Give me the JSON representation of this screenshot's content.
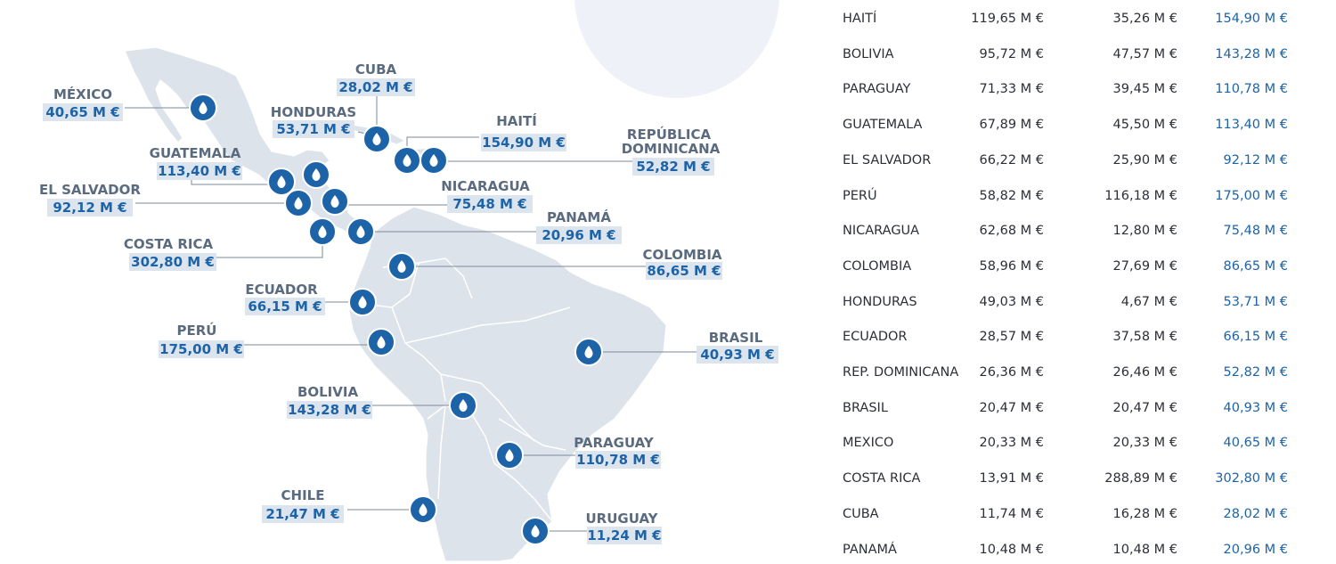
{
  "map": {
    "labels": [
      {
        "id": "mexico",
        "name": "MÉXICO",
        "value": "40,65 M €"
      },
      {
        "id": "cuba",
        "name": "CUBA",
        "value": "28,02 M €"
      },
      {
        "id": "honduras",
        "name": "HONDURAS",
        "value": "53,71 M €"
      },
      {
        "id": "haiti",
        "name": "HAITÍ",
        "value": "154,90 M €"
      },
      {
        "id": "rep_dominicana",
        "name": "REPÚBLICA",
        "name2": "DOMINICANA",
        "value": "52,82 M €"
      },
      {
        "id": "guatemala",
        "name": "GUATEMALA",
        "value": "113,40 M €"
      },
      {
        "id": "el_salvador",
        "name": "EL SALVADOR",
        "value": "92,12 M €"
      },
      {
        "id": "nicaragua",
        "name": "NICARAGUA",
        "value": "75,48 M €"
      },
      {
        "id": "panama",
        "name": "PANAMÁ",
        "value": "20,96 M €"
      },
      {
        "id": "costa_rica",
        "name": "COSTA RICA",
        "value": "302,80 M €"
      },
      {
        "id": "colombia",
        "name": "COLOMBIA",
        "value": "86,65 M €"
      },
      {
        "id": "ecuador",
        "name": "ECUADOR",
        "value": "66,15 M €"
      },
      {
        "id": "peru",
        "name": "PERÚ",
        "value": "175,00 M €"
      },
      {
        "id": "brasil",
        "name": "BRASIL",
        "value": "40,93 M €"
      },
      {
        "id": "bolivia",
        "name": "BOLIVIA",
        "value": "143,28 M €"
      },
      {
        "id": "paraguay",
        "name": "PARAGUAY",
        "value": "110,78 M €"
      },
      {
        "id": "chile",
        "name": "CHILE",
        "value": "21,47 M €"
      },
      {
        "id": "uruguay",
        "name": "URUGUAY",
        "value": "11,24 M €"
      }
    ]
  },
  "table": {
    "rows": [
      {
        "name": "HAITÍ",
        "a": "119,65 M €",
        "b": "35,26 M €",
        "total": "154,90 M €"
      },
      {
        "name": "BOLIVIA",
        "a": "95,72 M €",
        "b": "47,57 M €",
        "total": "143,28 M €"
      },
      {
        "name": "PARAGUAY",
        "a": "71,33 M €",
        "b": "39,45 M €",
        "total": "110,78 M €"
      },
      {
        "name": "GUATEMALA",
        "a": "67,89 M €",
        "b": "45,50 M €",
        "total": "113,40 M €"
      },
      {
        "name": "EL SALVADOR",
        "a": "66,22 M €",
        "b": "25,90 M €",
        "total": "92,12 M €"
      },
      {
        "name": "PERÚ",
        "a": "58,82 M €",
        "b": "116,18 M €",
        "total": "175,00 M €"
      },
      {
        "name": "NICARAGUA",
        "a": "62,68 M €",
        "b": "12,80 M €",
        "total": "75,48 M €"
      },
      {
        "name": "COLOMBIA",
        "a": "58,96 M €",
        "b": "27,69 M €",
        "total": "86,65 M €"
      },
      {
        "name": "HONDURAS",
        "a": "49,03 M €",
        "b": "4,67 M €",
        "total": "53,71 M €"
      },
      {
        "name": "ECUADOR",
        "a": "28,57 M €",
        "b": "37,58 M €",
        "total": "66,15 M €"
      },
      {
        "name": "REP. DOMINICANA",
        "a": "26,36 M €",
        "b": "26,46 M €",
        "total": "52,82 M €"
      },
      {
        "name": "BRASIL",
        "a": "20,47 M €",
        "b": "20,47 M €",
        "total": "40,93 M €"
      },
      {
        "name": "MEXICO",
        "a": "20,33 M €",
        "b": "20,33 M €",
        "total": "40,65 M €"
      },
      {
        "name": "COSTA RICA",
        "a": "13,91 M €",
        "b": "288,89 M €",
        "total": "302,80 M €"
      },
      {
        "name": "CUBA",
        "a": "11,74 M €",
        "b": "16,28 M €",
        "total": "28,02 M €"
      },
      {
        "name": "PANAMÁ",
        "a": "10,48 M €",
        "b": "10,48 M €",
        "total": "20,96 M €"
      }
    ]
  },
  "colors": {
    "accent": "#1d63a8",
    "land": "#dde3ea",
    "label_bg": "#dce4ee",
    "name_gray": "#5b6b7f"
  }
}
